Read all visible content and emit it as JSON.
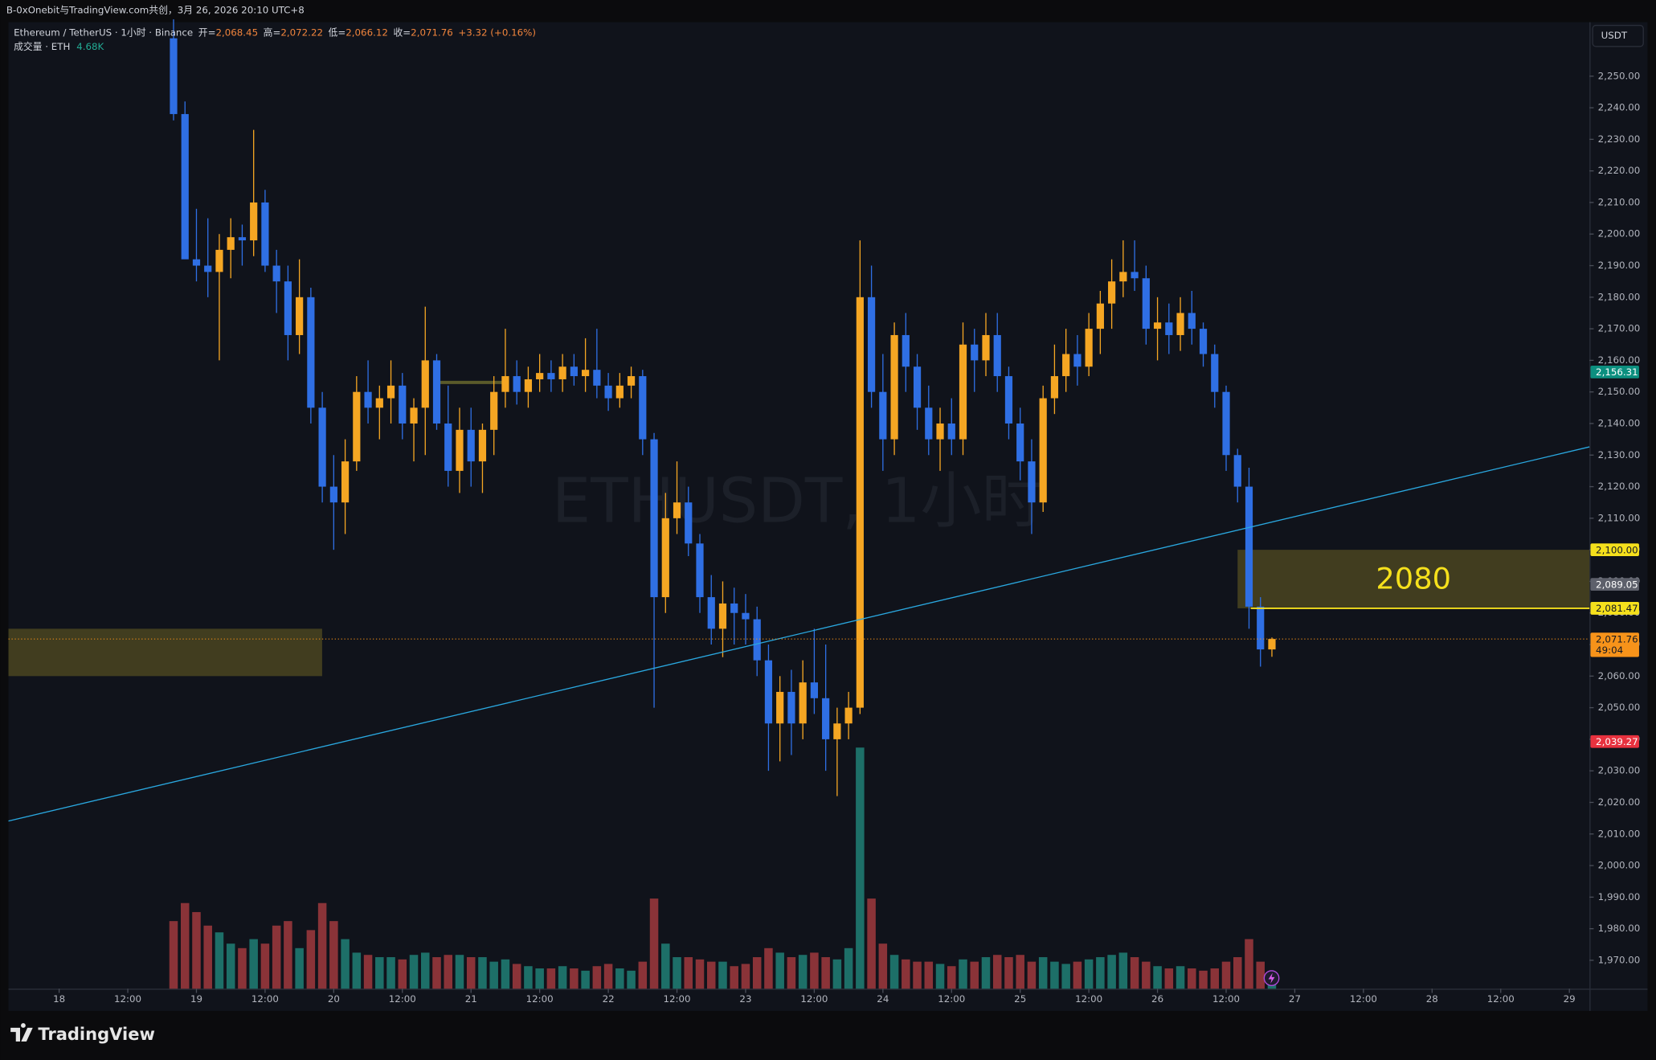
{
  "top_bar": {
    "text": "B-0xOnebit与TradingView.com共创，3月 26, 2026 20:10 UTC+8"
  },
  "footer": {
    "brand": "TradingView"
  },
  "chart_data": {
    "type": "candlestick",
    "title": "Ethereum / TetherUS · 1小时 · Binance",
    "legend": {
      "open_prefix": "开=",
      "open": "2,068.45",
      "high_prefix": "高=",
      "high": "2,072.22",
      "low_prefix": "低=",
      "low": "2,066.12",
      "close_prefix": "收=",
      "close": "2,071.76",
      "change": "+3.32 (+0.16%)",
      "volume_title": "成交量 · ETH",
      "volume": "4.68K"
    },
    "watermark": "ETHUSDT, 1小时",
    "currency": "USDT",
    "up_color": "#f5a623",
    "down_color": "#2f6fe4",
    "volume_up_color": "#1d6f68",
    "volume_down_color": "#8a3338",
    "x": [
      20,
      22,
      24,
      26,
      28,
      30,
      32,
      34,
      36,
      38,
      40,
      42,
      44,
      46,
      48,
      50,
      52,
      54,
      56,
      58,
      60,
      62,
      64,
      66,
      68,
      70,
      72,
      74,
      76,
      78,
      80,
      82,
      84,
      86,
      88,
      90,
      92,
      94,
      96,
      98,
      100,
      102,
      104,
      106,
      108,
      110,
      112,
      114,
      116,
      118,
      120,
      122,
      124,
      126,
      128,
      130,
      132,
      134,
      136,
      138,
      140,
      142,
      144,
      146,
      148,
      150,
      152,
      154,
      156,
      158,
      160,
      162,
      164,
      166,
      168,
      170,
      172,
      174,
      176,
      178,
      180,
      182,
      184,
      186,
      188,
      190,
      192,
      194,
      196,
      198,
      200,
      202,
      204,
      206,
      208,
      210,
      212
    ],
    "open": [
      2262,
      2238,
      2192,
      2190,
      2188,
      2195,
      2199,
      2198,
      2210,
      2190,
      2185,
      2168,
      2180,
      2145,
      2120,
      2115,
      2128,
      2150,
      2145,
      2148,
      2152,
      2140,
      2145,
      2160,
      2140,
      2125,
      2138,
      2128,
      2138,
      2150,
      2155,
      2150,
      2154,
      2156,
      2154,
      2158,
      2155,
      2157,
      2152,
      2148,
      2152,
      2155,
      2135,
      2085,
      2110,
      2115,
      2102,
      2085,
      2075,
      2083,
      2080,
      2078,
      2065,
      2045,
      2055,
      2045,
      2058,
      2053,
      2040,
      2045,
      2050,
      2180,
      2150,
      2135,
      2168,
      2158,
      2145,
      2135,
      2140,
      2135,
      2165,
      2160,
      2168,
      2155,
      2140,
      2128,
      2115,
      2148,
      2155,
      2162,
      2158,
      2170,
      2178,
      2185,
      2188,
      2186,
      2170,
      2172,
      2168,
      2175,
      2170,
      2162,
      2150,
      2130,
      2120,
      2082,
      2068.45
    ],
    "high": [
      2268,
      2242,
      2208,
      2205,
      2200,
      2205,
      2203,
      2233,
      2214,
      2195,
      2190,
      2192,
      2183,
      2150,
      2130,
      2135,
      2155,
      2160,
      2152,
      2160,
      2156,
      2148,
      2177,
      2162,
      2152,
      2145,
      2145,
      2140,
      2155,
      2170,
      2160,
      2158,
      2162,
      2160,
      2162,
      2162,
      2167,
      2170,
      2156,
      2156,
      2158,
      2157,
      2137,
      2118,
      2128,
      2120,
      2105,
      2092,
      2090,
      2088,
      2086,
      2082,
      2070,
      2060,
      2062,
      2065,
      2075,
      2070,
      2050,
      2055,
      2198,
      2190,
      2162,
      2172,
      2175,
      2162,
      2152,
      2145,
      2148,
      2172,
      2170,
      2175,
      2175,
      2158,
      2145,
      2135,
      2152,
      2165,
      2170,
      2168,
      2175,
      2182,
      2192,
      2198,
      2198,
      2190,
      2180,
      2178,
      2180,
      2182,
      2172,
      2165,
      2152,
      2132,
      2126,
      2085,
      2072.22
    ],
    "low": [
      2236,
      2195,
      2185,
      2180,
      2160,
      2186,
      2190,
      2193,
      2188,
      2175,
      2160,
      2162,
      2140,
      2115,
      2100,
      2105,
      2125,
      2140,
      2135,
      2140,
      2135,
      2128,
      2130,
      2138,
      2120,
      2118,
      2120,
      2118,
      2130,
      2145,
      2146,
      2145,
      2150,
      2150,
      2150,
      2152,
      2150,
      2148,
      2144,
      2145,
      2148,
      2130,
      2050,
      2080,
      2105,
      2098,
      2080,
      2070,
      2066,
      2070,
      2070,
      2060,
      2030,
      2033,
      2035,
      2040,
      2048,
      2030,
      2022,
      2040,
      2048,
      2145,
      2125,
      2130,
      2150,
      2138,
      2130,
      2125,
      2130,
      2130,
      2150,
      2155,
      2150,
      2135,
      2122,
      2105,
      2112,
      2143,
      2150,
      2152,
      2155,
      2162,
      2170,
      2180,
      2182,
      2165,
      2160,
      2162,
      2163,
      2165,
      2158,
      2145,
      2125,
      2115,
      2075,
      2063,
      2066.12
    ],
    "close": [
      2238,
      2192,
      2190,
      2188,
      2195,
      2199,
      2198,
      2210,
      2190,
      2185,
      2168,
      2180,
      2145,
      2120,
      2115,
      2128,
      2150,
      2145,
      2148,
      2152,
      2140,
      2145,
      2160,
      2140,
      2125,
      2138,
      2128,
      2138,
      2150,
      2155,
      2150,
      2154,
      2156,
      2154,
      2158,
      2155,
      2157,
      2152,
      2148,
      2152,
      2155,
      2135,
      2085,
      2110,
      2115,
      2102,
      2085,
      2075,
      2083,
      2080,
      2078,
      2065,
      2045,
      2055,
      2045,
      2058,
      2053,
      2040,
      2045,
      2050,
      2180,
      2150,
      2135,
      2168,
      2158,
      2145,
      2135,
      2140,
      2135,
      2165,
      2160,
      2168,
      2155,
      2140,
      2128,
      2115,
      2148,
      2155,
      2162,
      2158,
      2170,
      2178,
      2185,
      2188,
      2186,
      2170,
      2172,
      2168,
      2175,
      2170,
      2162,
      2150,
      2130,
      2120,
      2082,
      2068.45,
      2071.76
    ],
    "volume": [
      30000,
      38000,
      34000,
      28000,
      25000,
      20000,
      18000,
      22000,
      20000,
      28000,
      30000,
      18000,
      26000,
      38000,
      30000,
      22000,
      16000,
      15000,
      14000,
      14000,
      13000,
      15000,
      16000,
      14000,
      15000,
      15000,
      14000,
      14000,
      12000,
      13000,
      11000,
      10000,
      9000,
      9000,
      10000,
      9000,
      8000,
      10000,
      11000,
      9000,
      8000,
      12000,
      40000,
      20000,
      14000,
      14000,
      13000,
      12000,
      12000,
      10000,
      11000,
      14000,
      18000,
      16000,
      14000,
      15000,
      16000,
      14000,
      13000,
      18000,
      107000,
      40000,
      20000,
      15000,
      13000,
      12000,
      12000,
      11000,
      10000,
      13000,
      12000,
      14000,
      15000,
      14000,
      15000,
      12000,
      14000,
      12000,
      11000,
      12000,
      13000,
      14000,
      15000,
      16000,
      14000,
      12000,
      10000,
      9000,
      10000,
      9000,
      8000,
      9000,
      12000,
      14000,
      22000,
      12000,
      4680
    ],
    "volume_ylim": [
      0,
      150000
    ],
    "xlim": [
      -8.86,
      267.51
    ],
    "xticks": [
      {
        "value": 0,
        "label": "18"
      },
      {
        "value": 12,
        "label": "12:00"
      },
      {
        "value": 24,
        "label": "19"
      },
      {
        "value": 36,
        "label": "12:00"
      },
      {
        "value": 48,
        "label": "20"
      },
      {
        "value": 60,
        "label": "12:00"
      },
      {
        "value": 72,
        "label": "21"
      },
      {
        "value": 84,
        "label": "12:00"
      },
      {
        "value": 96,
        "label": "22"
      },
      {
        "value": 108,
        "label": "12:00"
      },
      {
        "value": 120,
        "label": "23"
      },
      {
        "value": 132,
        "label": "12:00"
      },
      {
        "value": 144,
        "label": "24"
      },
      {
        "value": 156,
        "label": "12:00"
      },
      {
        "value": 168,
        "label": "25"
      },
      {
        "value": 180,
        "label": "12:00"
      },
      {
        "value": 192,
        "label": "26"
      },
      {
        "value": 204,
        "label": "12:00"
      },
      {
        "value": 216,
        "label": "27"
      },
      {
        "value": 228,
        "label": "12:00"
      },
      {
        "value": 240,
        "label": "28"
      },
      {
        "value": 252,
        "label": "12:00"
      },
      {
        "value": 264,
        "label": "29"
      }
    ],
    "ylim": [
      1961,
      2267.1
    ],
    "yticks": [
      {
        "value": 1970,
        "label": "1,970.00"
      },
      {
        "value": 1980,
        "label": "1,980.00"
      },
      {
        "value": 1990,
        "label": "1,990.00"
      },
      {
        "value": 2000,
        "label": "2,000.00"
      },
      {
        "value": 2010,
        "label": "2,010.00"
      },
      {
        "value": 2020,
        "label": "2,020.00"
      },
      {
        "value": 2030,
        "label": "2,030.00"
      },
      {
        "value": 2040,
        "label": "2,040.00"
      },
      {
        "value": 2050,
        "label": "2,050.00"
      },
      {
        "value": 2060,
        "label": "2,060.00"
      },
      {
        "value": 2070,
        "label": "2,070.00"
      },
      {
        "value": 2080,
        "label": "2,080.00"
      },
      {
        "value": 2090,
        "label": "2,090.00"
      },
      {
        "value": 2100,
        "label": "2,100.00"
      },
      {
        "value": 2110,
        "label": "2,110.00"
      },
      {
        "value": 2120,
        "label": "2,120.00"
      },
      {
        "value": 2130,
        "label": "2,130.00"
      },
      {
        "value": 2140,
        "label": "2,140.00"
      },
      {
        "value": 2150,
        "label": "2,150.00"
      },
      {
        "value": 2160,
        "label": "2,160.00"
      },
      {
        "value": 2170,
        "label": "2,170.00"
      },
      {
        "value": 2180,
        "label": "2,180.00"
      },
      {
        "value": 2190,
        "label": "2,190.00"
      },
      {
        "value": 2200,
        "label": "2,200.00"
      },
      {
        "value": 2210,
        "label": "2,210.00"
      },
      {
        "value": 2220,
        "label": "2,220.00"
      },
      {
        "value": 2230,
        "label": "2,230.00"
      },
      {
        "value": 2240,
        "label": "2,240.00"
      },
      {
        "value": 2250,
        "label": "2,250.00"
      }
    ],
    "grid": false,
    "price_labels": [
      {
        "value": 2156.31,
        "label": "2,156.31",
        "color": "#0c8f7f",
        "text_color": "#ffffff"
      },
      {
        "value": 2100,
        "label": "2,100.00",
        "color": "#f5e01c",
        "text_color": "#131722"
      },
      {
        "value": 2089.05,
        "label": "2,089.05",
        "color": "#5d606b",
        "text_color": "#ffffff"
      },
      {
        "value": 2081.47,
        "label": "2,081.47",
        "color": "#f5e01c",
        "text_color": "#131722"
      },
      {
        "value": 2039.27,
        "label": "2,039.27",
        "color": "#e8323f",
        "text_color": "#ffffff"
      }
    ],
    "last_price": {
      "value": 2071.76,
      "label": "2,071.76",
      "countdown": "49:04",
      "color": "#f7931a"
    },
    "zones": [
      {
        "x": [
          -8.86,
          45.97
        ],
        "y": [
          2060,
          2075
        ],
        "color": "#4a4520"
      },
      {
        "x": [
          206,
          267.51
        ],
        "y": [
          2081.47,
          2100
        ],
        "color": "#4a4520",
        "label": "2080"
      }
    ],
    "level_line": {
      "x": [
        208.3,
        267.51
      ],
      "y": 2081.47,
      "color": "#f5e01c"
    },
    "short_line": {
      "x": [
        66.3,
        77.4
      ],
      "y": 2153,
      "color": "#5a5a2a"
    },
    "trendline": {
      "x": [
        -8.86,
        267.51
      ],
      "y": [
        2014.1,
        2132.6
      ],
      "color": "#2aa8e0"
    }
  }
}
